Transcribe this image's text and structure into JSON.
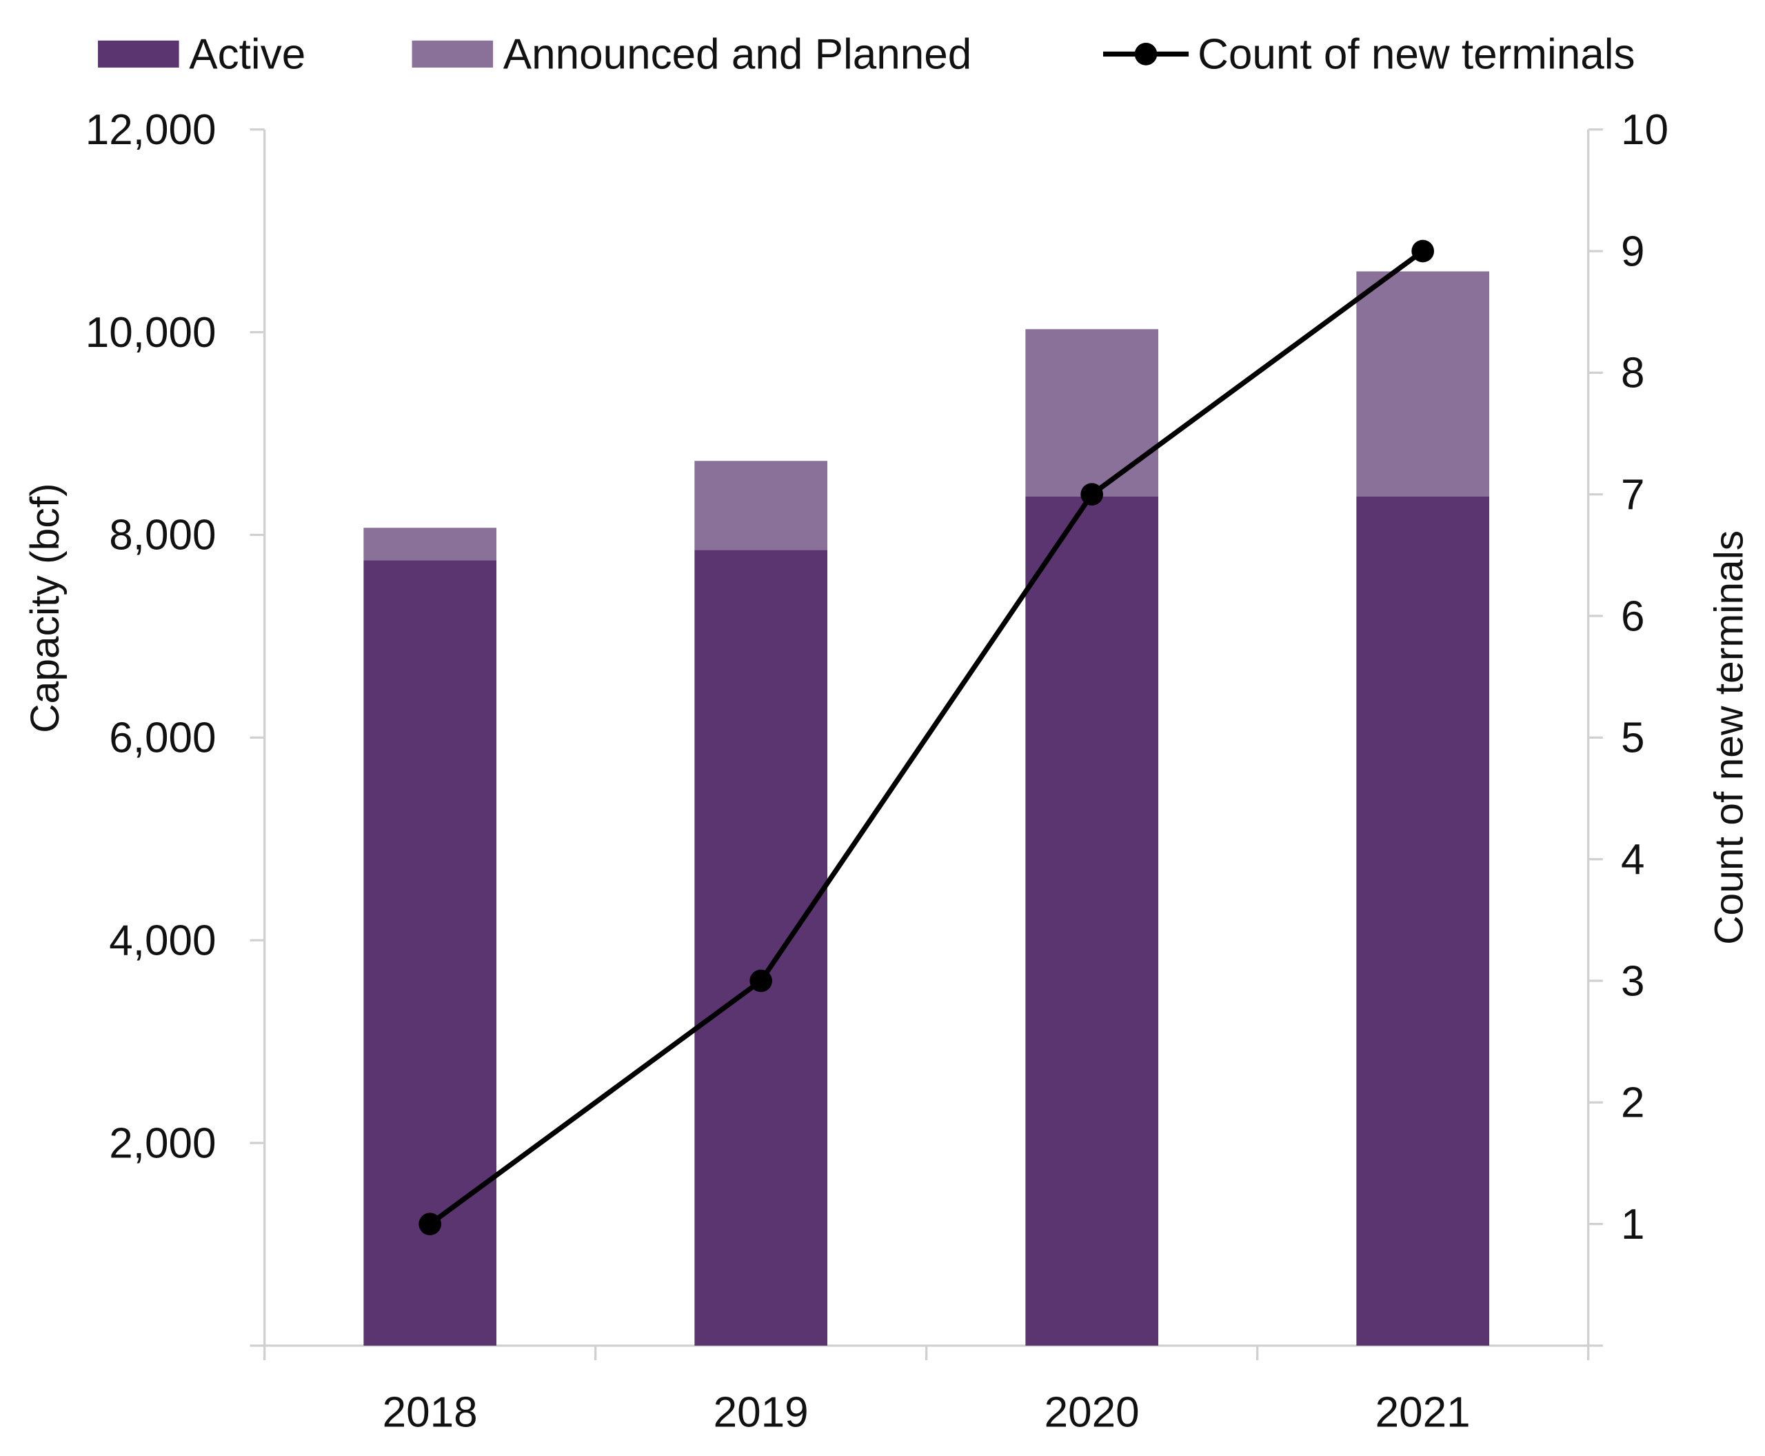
{
  "chart_data": {
    "type": "bar",
    "stacked": true,
    "categories": [
      "2018",
      "2019",
      "2020",
      "2021"
    ],
    "series": [
      {
        "name": "Active",
        "type": "bar",
        "axis": "left",
        "color": "#5b3570",
        "values": [
          7750,
          7850,
          8380,
          8380
        ]
      },
      {
        "name": "Announced and Planned",
        "type": "bar",
        "axis": "left",
        "color": "#8a7199",
        "values": [
          320,
          880,
          1650,
          2220
        ]
      },
      {
        "name": "Count of new terminals",
        "type": "line",
        "axis": "right",
        "color": "#000000",
        "marker": "circle",
        "values": [
          1,
          3,
          7,
          9
        ]
      }
    ],
    "ylabel": "Capacity (bcf)",
    "y2label": "Count of new terminals",
    "xlabel": "",
    "ylim": [
      0,
      12000
    ],
    "y2lim": [
      0,
      10
    ],
    "yticks": [
      "2,000",
      "4,000",
      "6,000",
      "8,000",
      "10,000",
      "12,000"
    ],
    "yticks_values": [
      2000,
      4000,
      6000,
      8000,
      10000,
      12000
    ],
    "y2ticks": [
      "1",
      "2",
      "3",
      "4",
      "5",
      "6",
      "7",
      "8",
      "9",
      "10"
    ],
    "y2ticks_values": [
      1,
      2,
      3,
      4,
      5,
      6,
      7,
      8,
      9,
      10
    ],
    "grid": false,
    "legend_position": "top"
  }
}
